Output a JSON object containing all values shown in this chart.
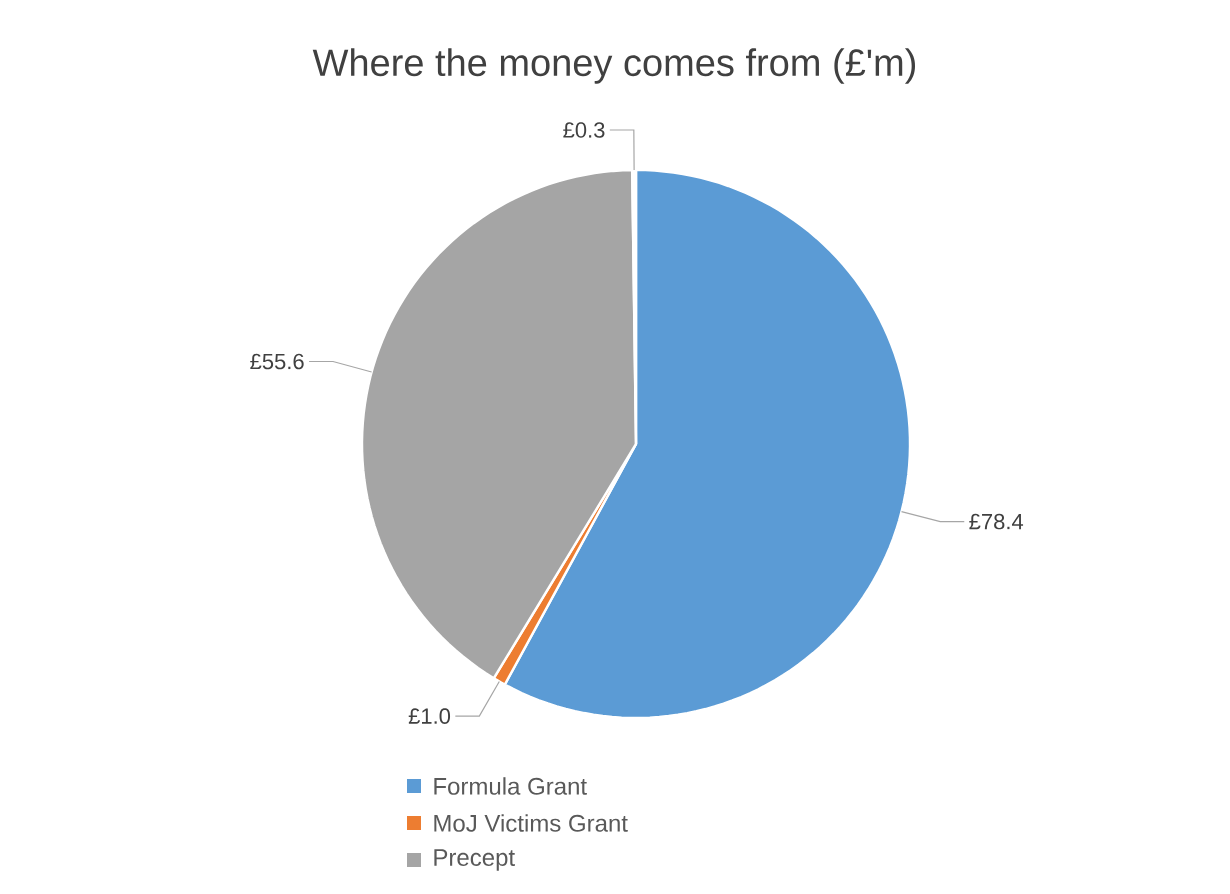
{
  "chart_data": {
    "type": "pie",
    "title": "Where the money comes from (£'m)",
    "categories": [
      "Formula Grant",
      "MoJ Victims Grant",
      "Precept",
      null
    ],
    "values": [
      78.4,
      1.0,
      55.6,
      0.3
    ],
    "colors": [
      "#5b9bd5",
      "#ed7d31",
      "#a5a5a5",
      "#ffffff"
    ],
    "value_labels": [
      "£78.4",
      "£1.0",
      "£55.6",
      "£0.3"
    ],
    "legend": "bottom"
  }
}
